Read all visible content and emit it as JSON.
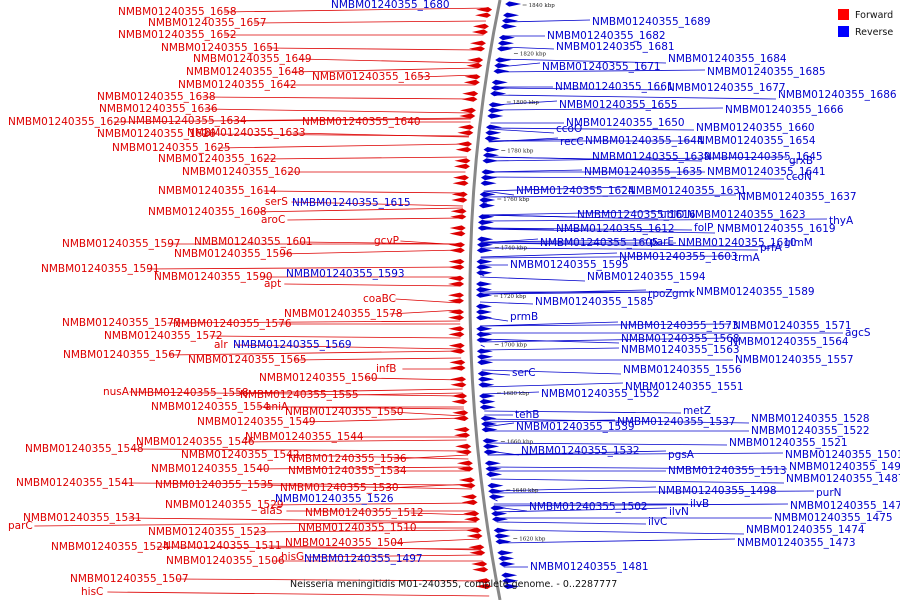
{
  "caption": "Neisseria meningitidis M01-240355, complete genome. - 0..2287777",
  "legend": [
    {
      "label": "Forward",
      "color": "#ff0000"
    },
    {
      "label": "Reverse",
      "color": "#0000ff"
    }
  ],
  "colors": {
    "forward": "#dd0000",
    "reverse": "#0000cc",
    "backbone": "#888888"
  },
  "scale_marks": [
    "1840 kbp",
    "1820 kbp",
    "1800 kbp",
    "1780 kbp",
    "1760 kbp",
    "1740 kbp",
    "1720 kbp",
    "1700 kbp",
    "1680 kbp",
    "1660 kbp",
    "1640 kbp",
    "1620 kbp"
  ],
  "forward_labels": [
    "NMBM01240355_1658",
    "NMBM01240355_1657",
    "NMBM01240355_1652",
    "NMBM01240355_1651",
    "NMBM01240355_1649",
    "NMBM01240355_1648",
    "NMBM01240355_1653",
    "NMBM01240355_1642",
    "NMBM01240355_1638",
    "NMBM01240355_1636",
    "NMBM01240355_1629",
    "NMBM01240355_1634",
    "NMBM01240355_1640",
    "NMBM01240355_1626",
    "NMBM01240355_1633",
    "NMBM01240355_1625",
    "NMBM01240355_1622",
    "NMBM01240355_1620",
    "NMBM01240355_1614",
    "serS",
    "NMBM01240355_1608",
    "aroC",
    "NMBM01240355_1597",
    "NMBM01240355_1601",
    "gcvP",
    "NMBM01240355_1596",
    "NMBM01240355_1591",
    "NMBM01240355_1590",
    "apt",
    "coaBC",
    "NMBM01240355_1578",
    "NMBM01240355_1577",
    "NMBM01240355_1576",
    "NMBM01240355_1572",
    "alr",
    "NMBM01240355_1567",
    "NMBM01240355_1565",
    "infB",
    "NMBM01240355_1560",
    "nusA",
    "NMBM01240355_1558",
    "NMBM01240355_1555",
    "NMBM01240355_1554",
    "aniA",
    "NMBM01240355_1550",
    "NMBM01240355_1549",
    "NMBM01240355_1546",
    "NMBM01240355_1544",
    "NMBM01240355_1548",
    "NMBM01240355_1542",
    "NMBM01240355_1536",
    "NMBM01240355_1540",
    "NMBM01240355_1534",
    "NMBM01240355_1541",
    "NMBM01240355_1535",
    "NMBM01240355_1530",
    "NMBM01240355_1529",
    "alaS",
    "NMBM01240355_1512",
    "NMBM01240355_1531",
    "parC",
    "NMBM01240355_1523",
    "NMBM01240355_1510",
    "NMBM01240355_1524",
    "NMBM01240355_1511",
    "NMBM01240355_1504",
    "hisG",
    "NMBM01240355_1506",
    "NMBM01240355_1507",
    "hisC"
  ],
  "reverse_labels": [
    "NMBM01240355_1680",
    "NMBM01240355_1689",
    "NMBM01240355_1682",
    "NMBM01240355_1681",
    "NMBM01240355_1684",
    "NMBM01240355_1671",
    "NMBM01240355_1685",
    "NMBM01240355_1661",
    "NMBM01240355_1677",
    "NMBM01240355_1686",
    "NMBM01240355_1655",
    "NMBM01240355_1666",
    "NMBM01240355_1650",
    "NMBM01240355_1660",
    "ccoO",
    "recC",
    "NMBM01240355_1644",
    "NMBM01240355_1654",
    "NMBM01240355_1639",
    "NMBM01240355_1645",
    "grxB",
    "NMBM01240355_1635",
    "NMBM01240355_1641",
    "ccoN",
    "NMBM01240355_1624",
    "NMBM01240355_1631",
    "NMBM01240355_1637",
    "NMBM01240355_1615",
    "NMBM01240355_1616",
    "ubiD",
    "NMBM01240355_1623",
    "thyA",
    "NMBM01240355_1612",
    "folP",
    "NMBM01240355_1619",
    "NMBM01240355_1605",
    "parE",
    "NMBM01240355_1610",
    "prfA",
    "glmM",
    "NMBM01240355_1603",
    "trmA",
    "NMBM01240355_1595",
    "NMBM01240355_1593",
    "NMBM01240355_1594",
    "rpoZ",
    "gmk",
    "NMBM01240355_1589",
    "NMBM01240355_1585",
    "prmB",
    "NMBM01240355_1573",
    "NMBM01240355_1571",
    "agcS",
    "NMBM01240355_1569",
    "NMBM01240355_1568",
    "NMBM01240355_1564",
    "NMBM01240355_1563",
    "NMBM01240355_1557",
    "serC",
    "NMBM01240355_1556",
    "NMBM01240355_1551",
    "NMBM01240355_1552",
    "tehB",
    "metZ",
    "NMBM01240355_1528",
    "NMBM01240355_1539",
    "NMBM01240355_1537",
    "NMBM01240355_1522",
    "NMBM01240355_1521",
    "NMBM01240355_1532",
    "pgsA",
    "NMBM01240355_1501",
    "NMBM01240355_1513",
    "NMBM01240355_1492",
    "NMBM01240355_1487",
    "NMBM01240355_1498",
    "purN",
    "ilvB",
    "NMBM01240355_1526",
    "NMBM01240355_1502",
    "ilvN",
    "NMBM01240355_1476",
    "NMBM01240355_1475",
    "ilvC",
    "NMBM01240355_1474",
    "NMBM01240355_1473",
    "NMBM01240355_1497",
    "NMBM01240355_1481"
  ]
}
